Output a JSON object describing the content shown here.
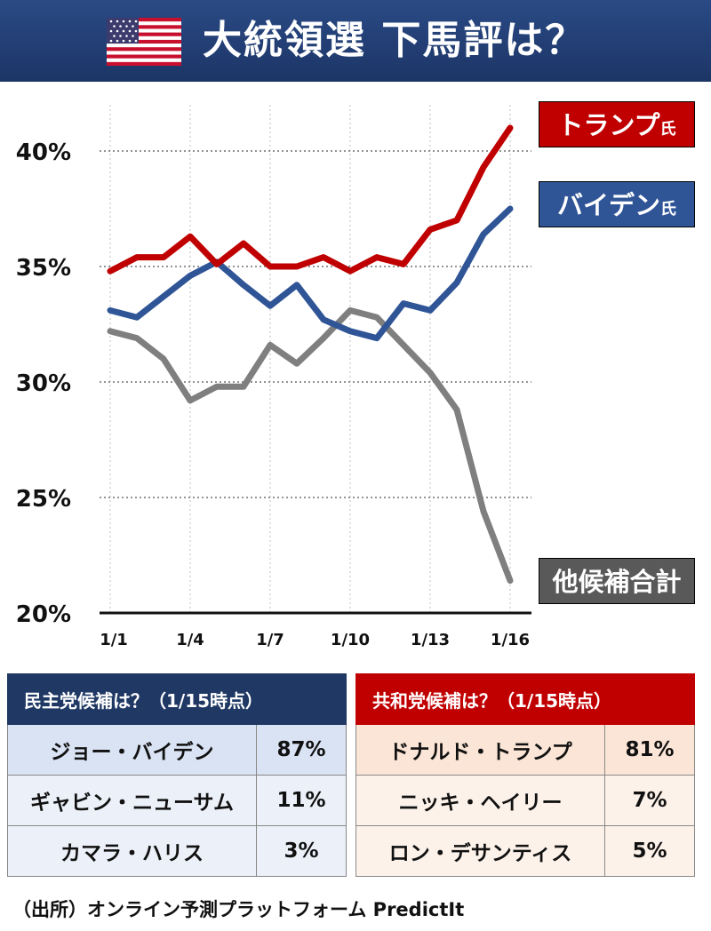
{
  "header": {
    "title": "大統領選 下馬評は？",
    "flag_icon": "us-flag-icon"
  },
  "chart_data": {
    "type": "line",
    "x": [
      "1/1",
      "1/2",
      "1/3",
      "1/4",
      "1/5",
      "1/6",
      "1/7",
      "1/8",
      "1/9",
      "1/10",
      "1/11",
      "1/12",
      "1/13",
      "1/14",
      "1/15",
      "1/16"
    ],
    "xticks": [
      "1/1",
      "1/4",
      "1/7",
      "1/10",
      "1/13",
      "1/16"
    ],
    "yticks": [
      "20%",
      "25%",
      "30%",
      "35%",
      "40%"
    ],
    "ylim": [
      20,
      42
    ],
    "grid": "horizontal dotted",
    "series": [
      {
        "name": "トランプ氏",
        "label": "トランプ",
        "suffix": "氏",
        "color": "#c00000",
        "values": [
          34.8,
          35.4,
          35.4,
          36.3,
          35.1,
          36.0,
          35.0,
          35.0,
          35.4,
          34.8,
          35.4,
          35.1,
          36.6,
          37.0,
          39.3,
          41.0
        ]
      },
      {
        "name": "バイデン氏",
        "label": "バイデン",
        "suffix": "氏",
        "color": "#2f5597",
        "values": [
          33.1,
          32.8,
          33.7,
          34.6,
          35.2,
          34.2,
          33.3,
          34.2,
          32.7,
          32.2,
          31.9,
          33.4,
          33.1,
          34.3,
          36.4,
          37.5
        ]
      },
      {
        "name": "他候補合計",
        "label": "他候補合計",
        "suffix": "",
        "color": "#7f7f7f",
        "values": [
          32.2,
          31.9,
          31.0,
          29.2,
          29.8,
          29.8,
          31.6,
          30.8,
          31.9,
          33.1,
          32.8,
          31.6,
          30.4,
          28.8,
          24.4,
          21.4
        ]
      }
    ]
  },
  "dem_table": {
    "header": "民主党候補は？（1/15時点）",
    "rows": [
      {
        "name": "ジョー・バイデン",
        "pct": "87%"
      },
      {
        "name": "ギャビン・ニューサム",
        "pct": "11%"
      },
      {
        "name": "カマラ・ハリス",
        "pct": "3%"
      }
    ]
  },
  "rep_table": {
    "header": "共和党候補は？（1/15時点）",
    "rows": [
      {
        "name": "ドナルド・トランプ",
        "pct": "81%"
      },
      {
        "name": "ニッキ・ヘイリー",
        "pct": "7%"
      },
      {
        "name": "ロン・デサンティス",
        "pct": "5%"
      }
    ]
  },
  "source": "（出所）オンライン予測プラットフォーム PredictIt"
}
